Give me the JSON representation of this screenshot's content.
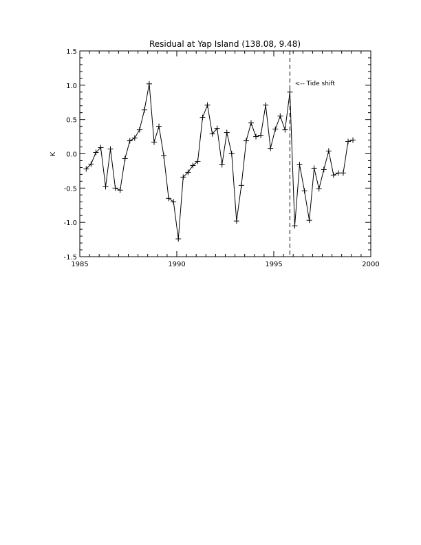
{
  "chart_data": {
    "type": "line",
    "title": "Residual at Yap Island (138.08, 9.48)",
    "xlabel": "",
    "ylabel": "K",
    "xlim": [
      1985,
      2000
    ],
    "ylim": [
      -1.5,
      1.5
    ],
    "x_ticks": [
      1985,
      1990,
      1995,
      2000
    ],
    "x_tick_labels": [
      "1985",
      "1990",
      "1995",
      "2000"
    ],
    "y_ticks": [
      -1.5,
      -1.0,
      -0.5,
      0.0,
      0.5,
      1.0,
      1.5
    ],
    "y_tick_labels": [
      "-1.5",
      "-1.0",
      "-0.5",
      "0.0",
      "0.5",
      "1.0",
      "1.5"
    ],
    "marker": "plus",
    "grid": false,
    "series": [
      {
        "x": [
          1985.33,
          1985.58,
          1985.83,
          1986.08,
          1986.33,
          1986.58,
          1986.83,
          1987.08,
          1987.33,
          1987.58,
          1987.83,
          1988.08,
          1988.33,
          1988.58,
          1988.83,
          1989.08,
          1989.33,
          1989.58,
          1989.83,
          1990.08,
          1990.33,
          1990.58,
          1990.83,
          1991.08,
          1991.33,
          1991.58,
          1991.83,
          1992.08,
          1992.33,
          1992.58,
          1992.83,
          1993.08,
          1993.33,
          1993.58,
          1993.83,
          1994.08,
          1994.33,
          1994.58,
          1994.83,
          1995.08,
          1995.33,
          1995.58,
          1995.83,
          1996.08,
          1996.33,
          1996.58,
          1996.83,
          1997.08,
          1997.33,
          1997.58,
          1997.83,
          1998.08,
          1998.33,
          1998.58,
          1998.83,
          1999.08
        ],
        "y": [
          -0.22,
          -0.15,
          0.02,
          0.09,
          -0.48,
          0.07,
          -0.5,
          -0.53,
          -0.07,
          0.19,
          0.23,
          0.35,
          0.64,
          1.02,
          0.17,
          0.4,
          -0.03,
          -0.65,
          -0.7,
          -1.24,
          -0.34,
          -0.27,
          -0.17,
          -0.11,
          0.53,
          0.71,
          0.29,
          0.37,
          -0.16,
          0.31,
          0.0,
          -0.98,
          -0.46,
          0.19,
          0.45,
          0.25,
          0.27,
          0.71,
          0.08,
          0.36,
          0.55,
          0.35,
          0.9,
          -1.05,
          -0.16,
          -0.54,
          -0.97,
          -0.21,
          -0.51,
          -0.23,
          0.04,
          -0.31,
          -0.28,
          -0.28,
          0.18,
          0.2
        ]
      }
    ],
    "annotations": [
      {
        "type": "vline",
        "x": 1995.83,
        "style": "dashed"
      },
      {
        "text": "<-- Tide shift",
        "x": 1995.95,
        "y": 1.03
      }
    ]
  }
}
